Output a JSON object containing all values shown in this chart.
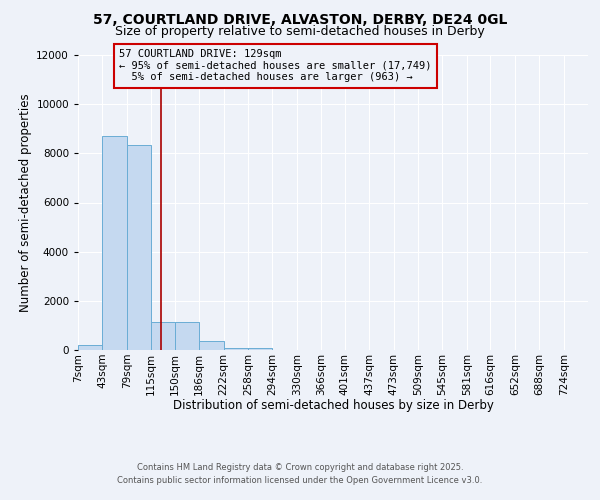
{
  "title1": "57, COURTLAND DRIVE, ALVASTON, DERBY, DE24 0GL",
  "title2": "Size of property relative to semi-detached houses in Derby",
  "xlabel": "Distribution of semi-detached houses by size in Derby",
  "ylabel": "Number of semi-detached properties",
  "bin_labels": [
    "7sqm",
    "43sqm",
    "79sqm",
    "115sqm",
    "150sqm",
    "186sqm",
    "222sqm",
    "258sqm",
    "294sqm",
    "330sqm",
    "366sqm",
    "401sqm",
    "437sqm",
    "473sqm",
    "509sqm",
    "545sqm",
    "581sqm",
    "616sqm",
    "652sqm",
    "688sqm",
    "724sqm"
  ],
  "bin_edges": [
    7,
    43,
    79,
    115,
    150,
    186,
    222,
    258,
    294,
    330,
    366,
    401,
    437,
    473,
    509,
    545,
    581,
    616,
    652,
    688,
    724,
    760
  ],
  "bar_heights": [
    200,
    8700,
    8350,
    1150,
    1150,
    350,
    100,
    80,
    0,
    0,
    0,
    0,
    0,
    0,
    0,
    0,
    0,
    0,
    0,
    0,
    0
  ],
  "bar_color": "#c5d9f0",
  "bar_edge_color": "#6aadd5",
  "property_size": 129,
  "vline_color": "#aa0000",
  "ylim": [
    0,
    12000
  ],
  "yticks": [
    0,
    2000,
    4000,
    6000,
    8000,
    10000,
    12000
  ],
  "annotation_line1": "57 COURTLAND DRIVE: 129sqm",
  "annotation_line2": "← 95% of semi-detached houses are smaller (17,749)",
  "annotation_line3": "  5% of semi-detached houses are larger (963) →",
  "annotation_box_color": "#cc0000",
  "footnote1": "Contains HM Land Registry data © Crown copyright and database right 2025.",
  "footnote2": "Contains public sector information licensed under the Open Government Licence v3.0.",
  "background_color": "#eef2f9",
  "grid_color": "#ffffff",
  "title1_fontsize": 10,
  "title2_fontsize": 9,
  "xlabel_fontsize": 8.5,
  "ylabel_fontsize": 8.5,
  "tick_fontsize": 7.5,
  "annot_fontsize": 7.5,
  "footnote_fontsize": 6
}
